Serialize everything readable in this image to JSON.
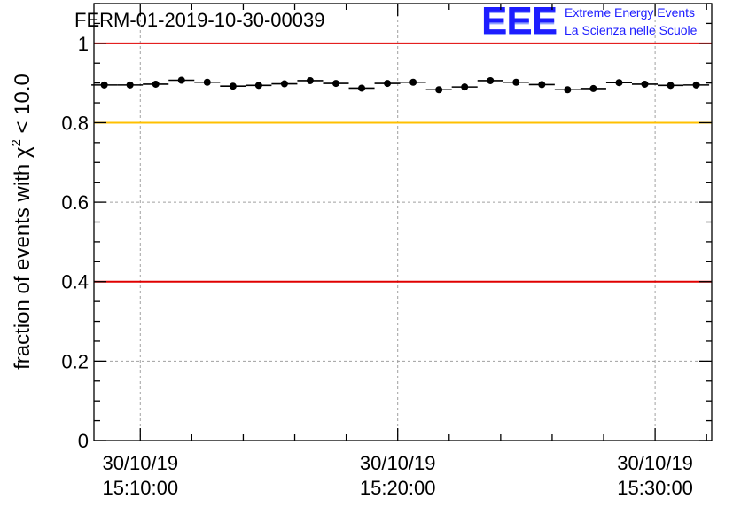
{
  "header": {
    "title": "FERM-01-2019-10-30-00039"
  },
  "logo": {
    "mark": "EEE",
    "line1": "Extreme Energy Events",
    "line2": "La Scienza nelle Scuole"
  },
  "colors": {
    "threshold_red": "#e00000",
    "threshold_yellow": "#ffc000",
    "grid": "#a0a0a0",
    "points": "#000000",
    "logo_blue": "#1d1dff"
  },
  "chart_data": {
    "type": "scatter",
    "title": "FERM-01-2019-10-30-00039",
    "xlabel": "",
    "ylabel": "fraction of events with χ² < 10.0",
    "ylabel_parts": {
      "prefix": "fraction of events with χ",
      "superscript": "2",
      "suffix": " < 10.0"
    },
    "ylim": [
      0,
      1.1
    ],
    "yticks": [
      0,
      0.2,
      0.4,
      0.6,
      0.8,
      1
    ],
    "ytick_labels": [
      "0",
      "0.2",
      "0.4",
      "0.6",
      "0.8",
      "1"
    ],
    "xlim_minutes": [
      1.8,
      25.8
    ],
    "xticks_minutes": [
      3.6,
      13.6,
      23.6
    ],
    "xtick_labels": [
      {
        "date": "30/10/19",
        "time": "15:10:00"
      },
      {
        "date": "30/10/19",
        "time": "15:20:00"
      },
      {
        "date": "30/10/19",
        "time": "15:30:00"
      }
    ],
    "minor_ticks_minutes": [
      1.6,
      5.6,
      7.6,
      9.6,
      11.6,
      15.6,
      17.6,
      19.6,
      21.6,
      25.6
    ],
    "grid": true,
    "thresholds": [
      {
        "y": 1.0,
        "color": "red"
      },
      {
        "y": 0.8,
        "color": "yellow"
      },
      {
        "y": 0.4,
        "color": "red"
      }
    ],
    "bin_width_minutes": 1.0,
    "x": [
      2.2,
      3.2,
      4.2,
      5.2,
      6.2,
      7.2,
      8.2,
      9.2,
      10.2,
      11.2,
      12.2,
      13.2,
      14.2,
      15.2,
      16.2,
      17.2,
      18.2,
      19.2,
      20.2,
      21.2,
      22.2,
      23.2,
      24.2,
      25.2
    ],
    "values": [
      0.895,
      0.895,
      0.897,
      0.907,
      0.902,
      0.892,
      0.894,
      0.898,
      0.906,
      0.899,
      0.887,
      0.899,
      0.902,
      0.883,
      0.89,
      0.906,
      0.902,
      0.896,
      0.883,
      0.886,
      0.901,
      0.897,
      0.894,
      0.895
    ]
  }
}
